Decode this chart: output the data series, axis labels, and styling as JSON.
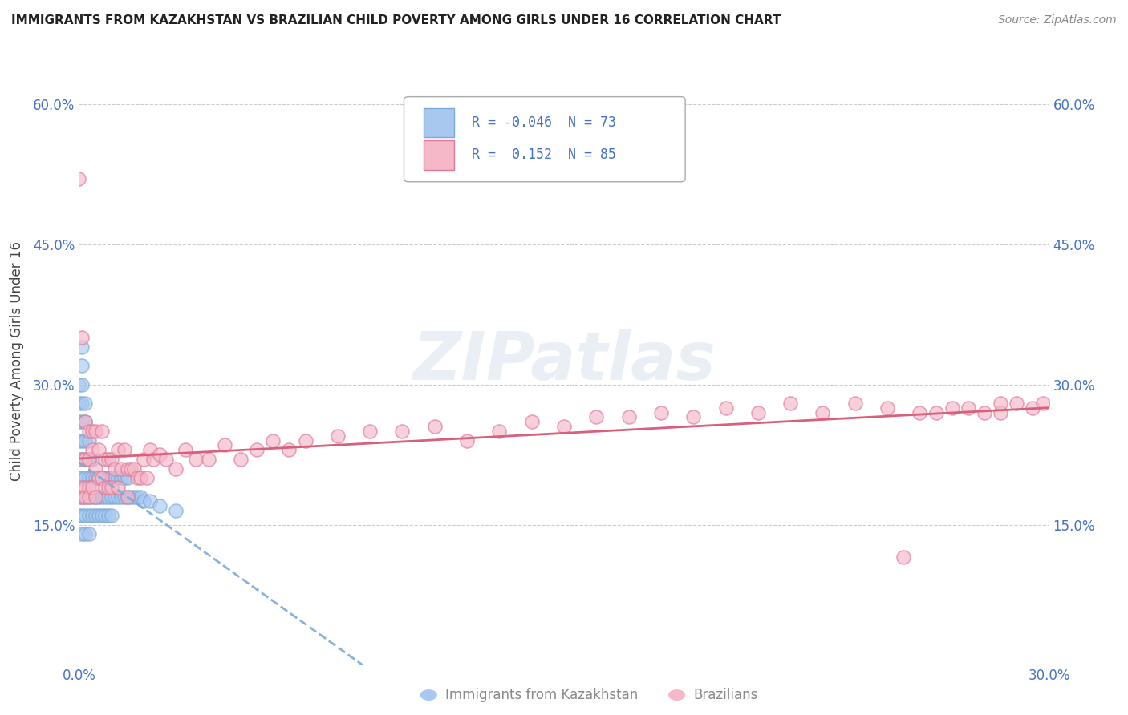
{
  "title": "IMMIGRANTS FROM KAZAKHSTAN VS BRAZILIAN CHILD POVERTY AMONG GIRLS UNDER 16 CORRELATION CHART",
  "source": "Source: ZipAtlas.com",
  "ylabel": "Child Poverty Among Girls Under 16",
  "xlim": [
    0.0,
    0.3
  ],
  "ylim": [
    0.0,
    0.65
  ],
  "xticks": [
    0.0,
    0.05,
    0.1,
    0.15,
    0.2,
    0.25,
    0.3
  ],
  "ytick_positions": [
    0.0,
    0.15,
    0.3,
    0.45,
    0.6
  ],
  "ytick_labels": [
    "",
    "15.0%",
    "30.0%",
    "45.0%",
    "60.0%"
  ],
  "xtick_labels": [
    "0.0%",
    "",
    "",
    "",
    "",
    "",
    "30.0%"
  ],
  "color_kaz": "#a8c8f0",
  "color_bra": "#f4b8c8",
  "edge_color_kaz": "#7aaad8",
  "edge_color_bra": "#e07898",
  "line_color_kaz": "#7aaad8",
  "line_color_bra": "#d8607a",
  "tick_color": "#4472c4",
  "background_color": "#ffffff",
  "grid_color": "#cccccc",
  "watermark_text": "ZIPatlas",
  "legend1_r": "-0.046",
  "legend1_n": "73",
  "legend2_r": "0.152",
  "legend2_n": "85",
  "kaz_x": [
    0.0,
    0.0,
    0.0,
    0.0,
    0.0,
    0.0,
    0.0,
    0.0,
    0.001,
    0.001,
    0.001,
    0.001,
    0.001,
    0.001,
    0.001,
    0.001,
    0.001,
    0.001,
    0.001,
    0.002,
    0.002,
    0.002,
    0.002,
    0.002,
    0.002,
    0.002,
    0.002,
    0.003,
    0.003,
    0.003,
    0.003,
    0.003,
    0.003,
    0.004,
    0.004,
    0.004,
    0.004,
    0.005,
    0.005,
    0.005,
    0.006,
    0.006,
    0.006,
    0.007,
    0.007,
    0.007,
    0.008,
    0.008,
    0.008,
    0.009,
    0.009,
    0.009,
    0.01,
    0.01,
    0.01,
    0.011,
    0.011,
    0.012,
    0.012,
    0.013,
    0.013,
    0.014,
    0.014,
    0.015,
    0.015,
    0.016,
    0.017,
    0.018,
    0.019,
    0.02,
    0.022,
    0.025,
    0.03
  ],
  "kaz_y": [
    0.2,
    0.22,
    0.24,
    0.26,
    0.28,
    0.3,
    0.18,
    0.16,
    0.2,
    0.22,
    0.24,
    0.26,
    0.28,
    0.18,
    0.16,
    0.3,
    0.32,
    0.34,
    0.14,
    0.2,
    0.22,
    0.24,
    0.18,
    0.16,
    0.14,
    0.28,
    0.26,
    0.2,
    0.22,
    0.18,
    0.16,
    0.14,
    0.24,
    0.2,
    0.22,
    0.18,
    0.16,
    0.2,
    0.18,
    0.16,
    0.2,
    0.18,
    0.16,
    0.2,
    0.18,
    0.16,
    0.2,
    0.18,
    0.16,
    0.2,
    0.18,
    0.16,
    0.2,
    0.18,
    0.16,
    0.2,
    0.18,
    0.2,
    0.18,
    0.2,
    0.18,
    0.2,
    0.18,
    0.2,
    0.18,
    0.18,
    0.18,
    0.18,
    0.18,
    0.175,
    0.175,
    0.17,
    0.165
  ],
  "bra_x": [
    0.0,
    0.001,
    0.001,
    0.001,
    0.001,
    0.002,
    0.002,
    0.002,
    0.002,
    0.003,
    0.003,
    0.003,
    0.003,
    0.004,
    0.004,
    0.004,
    0.005,
    0.005,
    0.005,
    0.006,
    0.006,
    0.007,
    0.007,
    0.008,
    0.008,
    0.009,
    0.009,
    0.01,
    0.01,
    0.011,
    0.012,
    0.012,
    0.013,
    0.014,
    0.015,
    0.015,
    0.016,
    0.017,
    0.018,
    0.019,
    0.02,
    0.021,
    0.022,
    0.023,
    0.025,
    0.027,
    0.03,
    0.033,
    0.036,
    0.04,
    0.045,
    0.05,
    0.055,
    0.06,
    0.065,
    0.07,
    0.08,
    0.09,
    0.1,
    0.11,
    0.12,
    0.13,
    0.14,
    0.15,
    0.16,
    0.17,
    0.18,
    0.19,
    0.2,
    0.21,
    0.22,
    0.23,
    0.24,
    0.25,
    0.26,
    0.27,
    0.28,
    0.29,
    0.295,
    0.298,
    0.285,
    0.255,
    0.275,
    0.265,
    0.285
  ],
  "bra_y": [
    0.52,
    0.22,
    0.19,
    0.35,
    0.18,
    0.22,
    0.19,
    0.26,
    0.18,
    0.22,
    0.19,
    0.25,
    0.18,
    0.23,
    0.19,
    0.25,
    0.21,
    0.18,
    0.25,
    0.2,
    0.23,
    0.25,
    0.2,
    0.22,
    0.19,
    0.22,
    0.19,
    0.22,
    0.19,
    0.21,
    0.23,
    0.19,
    0.21,
    0.23,
    0.21,
    0.18,
    0.21,
    0.21,
    0.2,
    0.2,
    0.22,
    0.2,
    0.23,
    0.22,
    0.225,
    0.22,
    0.21,
    0.23,
    0.22,
    0.22,
    0.235,
    0.22,
    0.23,
    0.24,
    0.23,
    0.24,
    0.245,
    0.25,
    0.25,
    0.255,
    0.24,
    0.25,
    0.26,
    0.255,
    0.265,
    0.265,
    0.27,
    0.265,
    0.275,
    0.27,
    0.28,
    0.27,
    0.28,
    0.275,
    0.27,
    0.275,
    0.27,
    0.28,
    0.275,
    0.28,
    0.27,
    0.115,
    0.275,
    0.27,
    0.28
  ]
}
